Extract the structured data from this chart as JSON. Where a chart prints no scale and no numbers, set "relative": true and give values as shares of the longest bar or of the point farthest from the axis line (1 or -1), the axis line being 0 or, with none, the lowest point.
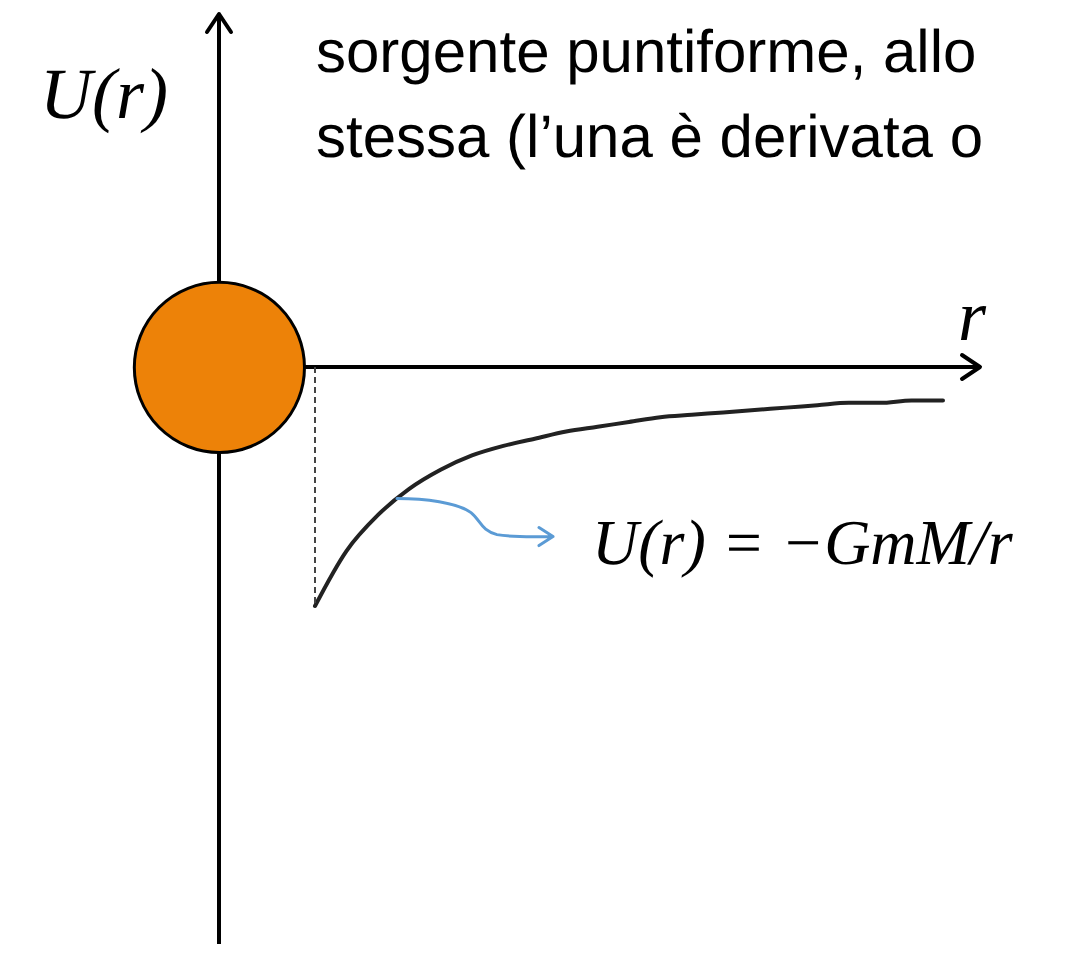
{
  "chart_data": {
    "type": "line",
    "relative": true,
    "xlabel": "r",
    "ylabel": "U(r)",
    "annotations": [
      "sorgente puntiforme, allo",
      "stessa (l’una è derivata o"
    ],
    "categories": [
      null,
      null,
      null,
      null,
      null,
      null,
      null,
      null,
      null,
      null,
      null,
      null,
      null,
      null,
      null,
      null,
      null,
      null,
      null,
      null,
      null
    ],
    "series": [
      {
        "name": "U(r) = −GmM/r",
        "color": "#222222",
        "values": [
          -1.0,
          -0.77,
          -0.62,
          -0.51,
          -0.43,
          -0.37,
          -0.33,
          -0.3,
          -0.27,
          -0.25,
          -0.23,
          -0.21,
          -0.2,
          -0.19,
          -0.18,
          -0.17,
          -0.16,
          -0.15,
          -0.15,
          -0.14,
          -0.14
        ]
      }
    ]
  }
}
